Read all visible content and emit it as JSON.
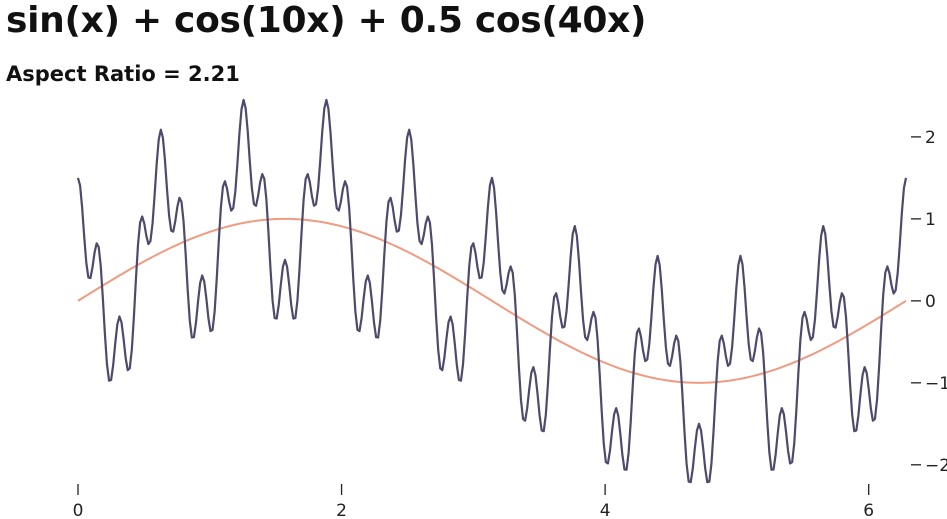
{
  "title": "sin(x) + cos(10x) + 0.5 cos(40x)",
  "subtitle": "Aspect Ratio = 2.21",
  "chart_data": {
    "type": "line",
    "title": "sin(x) + cos(10x) + 0.5 cos(40x)",
    "subtitle": "Aspect Ratio = 2.21",
    "xlabel": "",
    "ylabel": "",
    "xlim": [
      0,
      6.2832
    ],
    "ylim": [
      -2.1,
      2.45
    ],
    "x_ticks": [
      0,
      2,
      4,
      6
    ],
    "x_tick_labels": [
      "0",
      "2",
      "4",
      "6"
    ],
    "y_ticks": [
      2,
      1,
      0,
      -1,
      -2
    ],
    "y_tick_labels": [
      "2",
      "1",
      "0",
      "−1",
      "−2"
    ],
    "y_axis_side": "right",
    "grid": false,
    "legend": "none",
    "series": [
      {
        "function": "sin(x) + cos(10x) + 0.5 cos(40x)",
        "x_start": 0,
        "x_end": 6.2832,
        "samples": 400,
        "color": "#4d4a6b"
      },
      {
        "function": "sin(x)",
        "x_start": 0,
        "x_end": 6.2832,
        "samples": 200,
        "color": "#f09a80"
      }
    ]
  }
}
